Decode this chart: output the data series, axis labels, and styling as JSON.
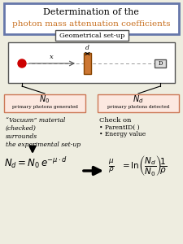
{
  "title_line1": "Determination of the",
  "title_line2": "photon mass attenuation coefficients",
  "title_color1": "#000000",
  "title_color2": "#c87020",
  "title_box_edgecolor": "#6677aa",
  "geo_label": "Geometrical set-up",
  "absorber_color": "#cc7733",
  "source_color": "#cc0000",
  "bg_color": "#eeede0",
  "white": "#ffffff",
  "box_fill_pink": "#fce8e0",
  "box_edge_pink": "#cc7755"
}
